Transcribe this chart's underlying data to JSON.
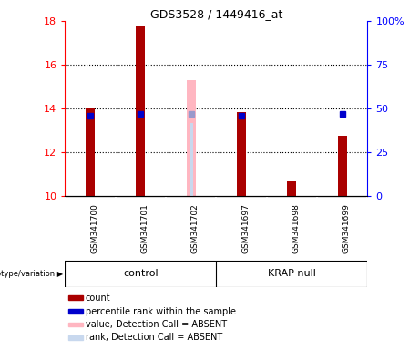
{
  "title": "GDS3528 / 1449416_at",
  "samples": [
    "GSM341700",
    "GSM341701",
    "GSM341702",
    "GSM341697",
    "GSM341698",
    "GSM341699"
  ],
  "ylim_left": [
    10,
    18
  ],
  "ylim_right": [
    0,
    100
  ],
  "yticks_left": [
    10,
    12,
    14,
    16,
    18
  ],
  "yticks_right": [
    0,
    25,
    50,
    75,
    100
  ],
  "ytick_labels_right": [
    "0",
    "25",
    "50",
    "75",
    "100%"
  ],
  "bar_values": [
    14.0,
    17.75,
    null,
    13.85,
    10.65,
    12.75
  ],
  "bar_color": "#aa0000",
  "absent_value_bar": [
    null,
    null,
    15.3,
    null,
    null,
    null
  ],
  "absent_rank_bar": [
    null,
    null,
    13.35,
    null,
    null,
    null
  ],
  "absent_value_color": "#ffb6c1",
  "absent_rank_color": "#c8d8ee",
  "percentile_values": [
    46,
    47,
    null,
    46,
    null,
    47
  ],
  "percentile_absent": [
    null,
    null,
    47,
    null,
    null,
    null
  ],
  "dot_color": "#0000cc",
  "dot_absent_color": "#9999cc",
  "dot_size": 18,
  "bar_width": 0.18,
  "background_color": "#ffffff",
  "group_bg": "#90ee90",
  "sample_bg": "#d3d3d3",
  "legend_items": [
    {
      "label": "count",
      "color": "#aa0000"
    },
    {
      "label": "percentile rank within the sample",
      "color": "#0000cc"
    },
    {
      "label": "value, Detection Call = ABSENT",
      "color": "#ffb6c1"
    },
    {
      "label": "rank, Detection Call = ABSENT",
      "color": "#c8d8ee"
    }
  ]
}
